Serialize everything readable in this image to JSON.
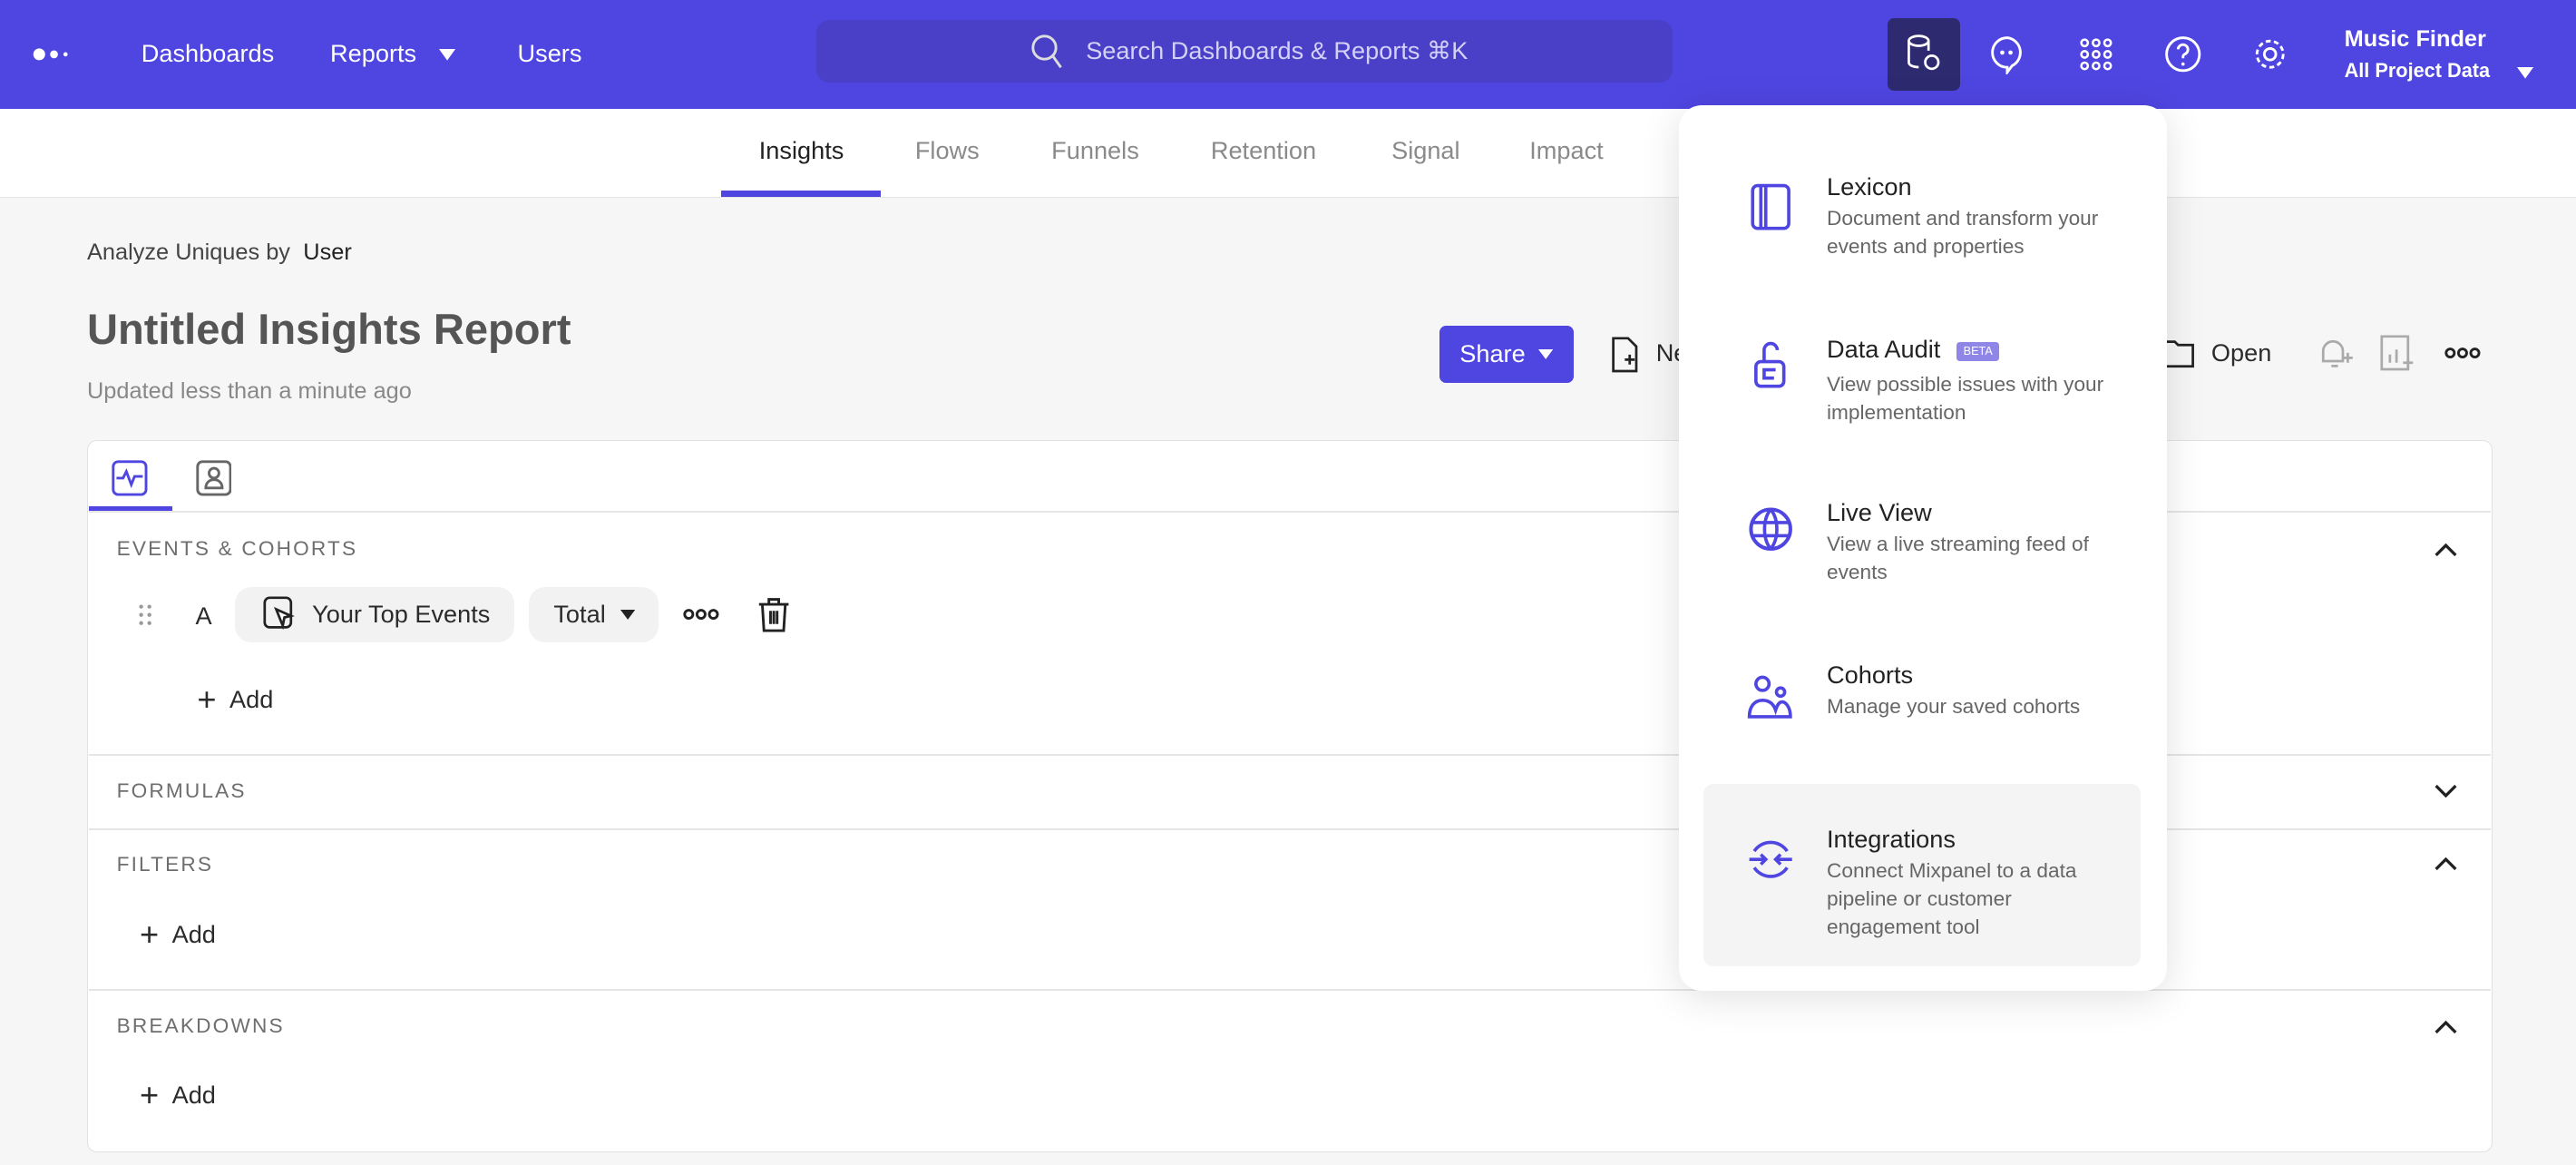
{
  "topnav": {
    "logo": "mixpanel-logo",
    "links": [
      "Dashboards",
      "Reports",
      "Users"
    ],
    "search_placeholder": "Search Dashboards & Reports ⌘K",
    "project_name": "Music Finder",
    "project_scope": "All Project Data",
    "accent": "#4f45e1"
  },
  "subnav": {
    "tabs": [
      "Insights",
      "Flows",
      "Funnels",
      "Retention",
      "Signal",
      "Impact"
    ],
    "active": "Insights"
  },
  "report": {
    "analyze_label": "Analyze Uniques by",
    "analyze_value": "User",
    "title": "Untitled Insights Report",
    "updated": "Updated less than a minute ago",
    "share_label": "Share",
    "new_label": "Ne",
    "open_label": "Open"
  },
  "query": {
    "sections": {
      "events": "EVENTS & COHORTS",
      "formulas": "FORMULAS",
      "filters": "FILTERS",
      "breakdowns": "BREAKDOWNS"
    },
    "event_row": {
      "letter": "A",
      "event": "Your Top Events",
      "measure": "Total"
    },
    "add_label": "Add"
  },
  "data_menu": {
    "items": [
      {
        "title": "Lexicon",
        "desc": "Document and transform your events and properties",
        "icon": "book-icon"
      },
      {
        "title": "Data Audit",
        "badge": "BETA",
        "desc": "View possible issues with your implementation",
        "icon": "lock-icon"
      },
      {
        "title": "Live View",
        "desc": "View a live streaming feed of events",
        "icon": "globe-icon"
      },
      {
        "title": "Cohorts",
        "desc": "Manage your saved cohorts",
        "icon": "people-icon"
      },
      {
        "title": "Integrations",
        "desc": "Connect Mixpanel to a data pipeline or customer engagement tool",
        "icon": "integrations-icon"
      }
    ],
    "highlighted": "Integrations"
  }
}
